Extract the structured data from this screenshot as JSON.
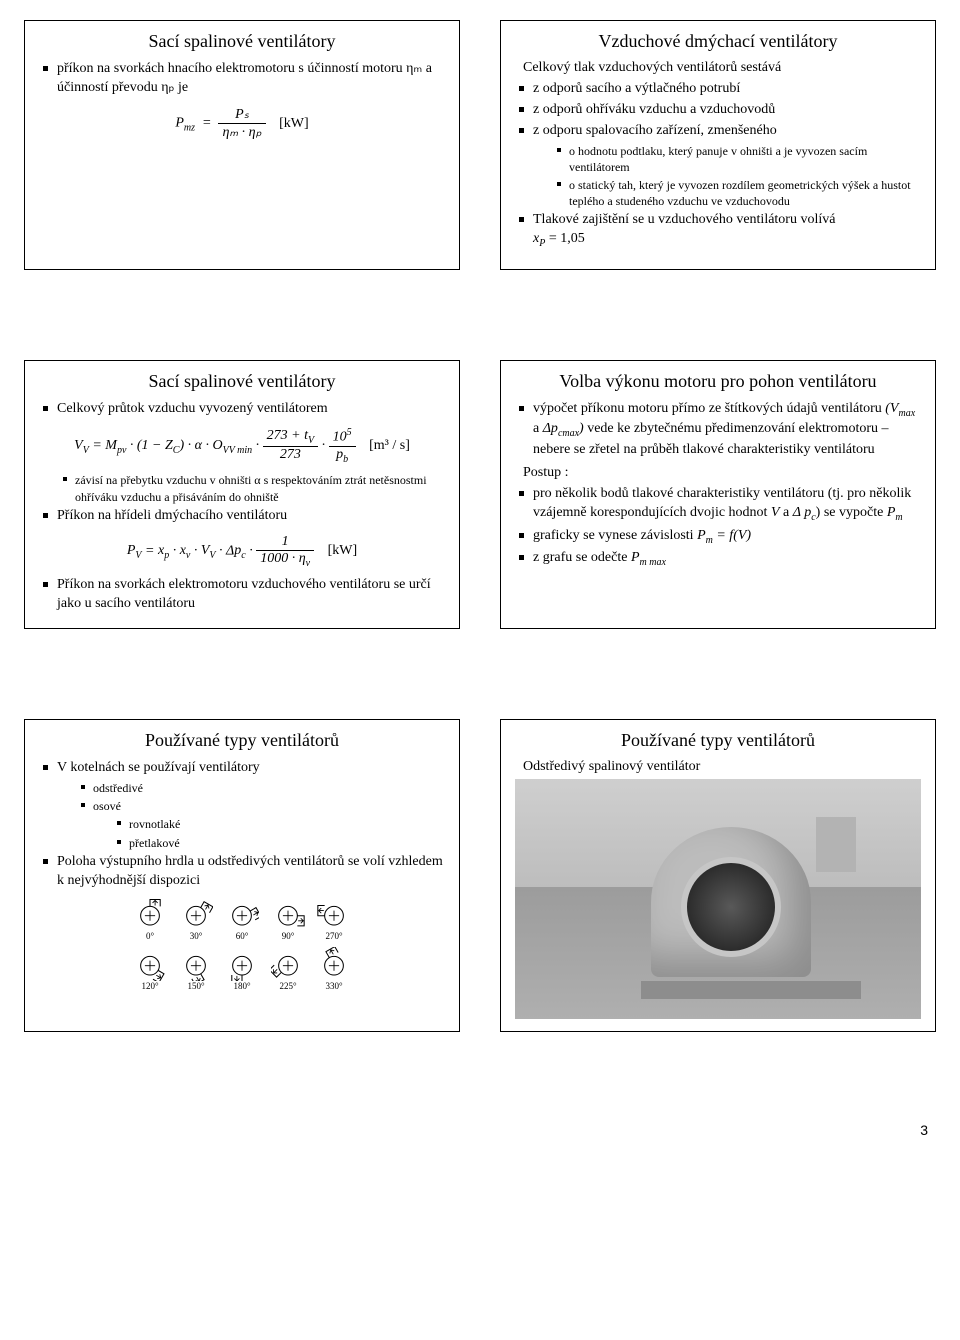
{
  "page_number": "3",
  "slide1": {
    "title": "Sací spalinové ventilátory",
    "p1": "příkon na svorkách hnacího elektromotoru s účinností motoru ηₘ a účinností převodu ηₚ je",
    "formula_lhs": "P",
    "formula_lhs_sub": "mz",
    "formula_num": "Pₛ",
    "formula_den": "ηₘ · ηₚ",
    "formula_unit": "[kW]"
  },
  "slide2": {
    "title": "Vzduchové dmýchací ventilátory",
    "lead": "Celkový tlak vzduchových ventilátorů sestává",
    "b1": "z odporů sacího a výtlačného potrubí",
    "b2": "z odporů ohříváku vzduchu a vzduchovodů",
    "b3": "z odporu spalovacího zařízení, zmenšeného",
    "b3a": "o hodnotu podtlaku, který panuje v ohništi a je vyvozen sacím ventilátorem",
    "b3b": "o statický tah, který je vyvozen rozdílem geometrických výšek a hustot teplého a studeného vzduchu ve vzduchovodu",
    "b4": "Tlakové zajištění se u vzduchového ventilátoru volívá xₚ = 1,05"
  },
  "slide3": {
    "title": "Sací spalinové ventilátory",
    "b1": "Celkový průtok vzduchu vyvozený ventilátorem",
    "formula1": "V_V = M_{pv} · (1 − Z_C) · α · O_{VV min} · (273 + t_V)/273 · 10^5/p_b   [m³/s]",
    "b1_sub": "závisí na přebytku vzduchu v ohništi α s respektováním ztrát netěsnostmi ohříváku vzduchu a přisáváním do ohniště",
    "b2": "Příkon na hřídeli dmýchacího ventilátoru",
    "formula2": "P_V = x_p · x_v · V_V · Δp_c · 1/(1000·η_v)   [kW]",
    "b3": "Příkon na svorkách elektromotoru vzduchového ventilátoru se určí jako u sacího ventilátoru"
  },
  "slide4": {
    "title": "Volba výkonu motoru pro pohon ventilátoru",
    "b1": "výpočet příkonu motoru přímo ze štítkových údajů ventilátoru (V_max a Δp_cmax) vede ke zbytečnému předimenzování elektromotoru – nebere se zřetel na průběh tlakové charakteristiky ventilátoru",
    "postup": "Postup :",
    "b2": "pro několik bodů tlakové charakteristiky ventilátoru (tj. pro několik vzájemně korespondujících dvojic hodnot V a Δ p_c) se vypočte P_m",
    "b3": "graficky se vynese závislosti P_m = f(V)",
    "b4": "z grafu se odečte P_m max"
  },
  "slide5": {
    "title": "Používané typy ventilátorů",
    "b1": "V kotelnách se používají ventilátory",
    "b1a": "odstředivé",
    "b1b": "osové",
    "b1b1": "rovnotlaké",
    "b1b2": "přetlakové",
    "b2": "Poloha výstupního hrdla u odstředivých ventilátorů se volí vzhledem k nejvýhodnější dispozici",
    "angles_top": [
      "0°",
      "30°",
      "60°",
      "90°",
      "270°"
    ],
    "angles_bot": [
      "120°",
      "150°",
      "180°",
      "225°",
      "330°"
    ]
  },
  "slide6": {
    "title": "Používané typy ventilátorů",
    "lead": "Odstředivý spalinový ventilátor"
  }
}
